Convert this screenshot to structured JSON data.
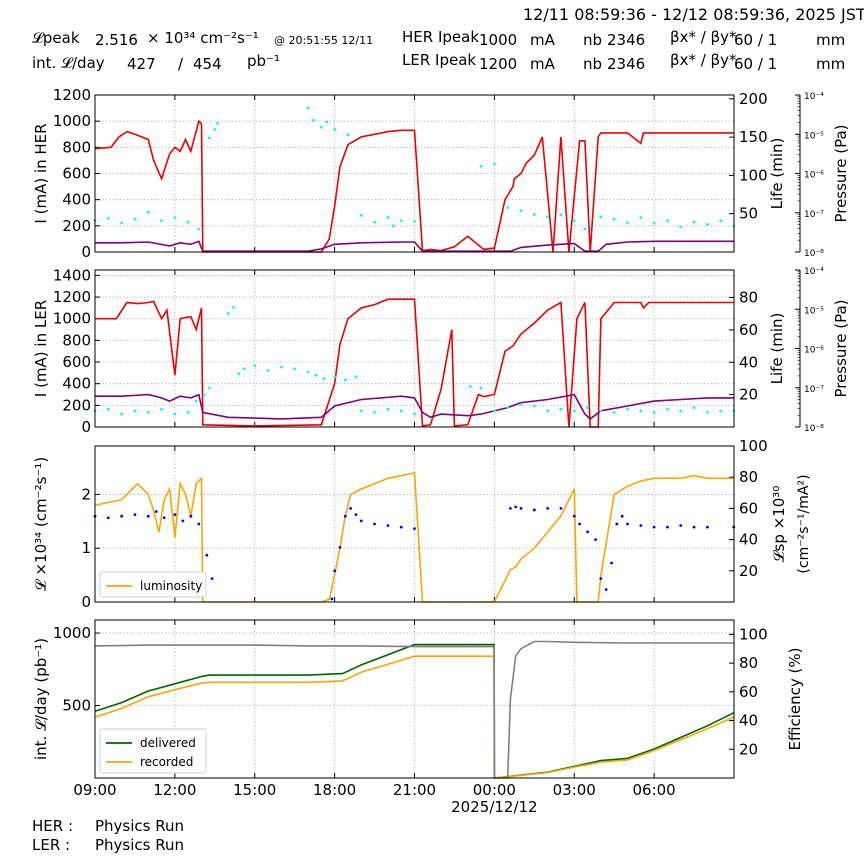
{
  "header": {
    "time_range": "12/11 08:59:36 - 12/12 08:59:36, 2025 JST",
    "lpeak_label": "𝓛peak",
    "lpeak_value": "2.516",
    "lpeak_unit": "× 10³⁴ cm⁻²s⁻¹",
    "lpeak_time": "@ 20:51:55 12/11",
    "intl_label": "int. 𝓛/day",
    "intl_delivered": "427",
    "intl_sep": "/",
    "intl_recorded": "454",
    "intl_unit": "pb⁻¹",
    "her_label": "HER Ipeak",
    "her_value": "1000",
    "her_unit": "mA",
    "ler_label": "LER Ipeak",
    "ler_value": "1200",
    "ler_unit": "mA",
    "nb_label": "nb",
    "her_nb": "2346",
    "ler_nb": "2346",
    "beta_label": "βx* / βy*",
    "her_beta": "60   / 1",
    "ler_beta": "60   / 1",
    "beta_unit": "mm"
  },
  "footer": {
    "her_label": "HER :",
    "her_status": "Physics Run",
    "ler_label": "LER :",
    "ler_status": "Physics Run"
  },
  "colors": {
    "current": "#ee0000",
    "life": "#800080",
    "pressure": "#00ffff",
    "luminosity": "#ffa500",
    "specific": "#0000ff",
    "delivered": "#006400",
    "recorded": "#ffa500",
    "efficiency": "#808080"
  },
  "chart_data": [
    {
      "type": "line",
      "ylabel": "I (mA) in HER",
      "y2label": "Life (min)",
      "y3label": "Pressure (Pa)",
      "ylim": [
        0,
        1200
      ],
      "yticks": [
        0,
        200,
        400,
        600,
        800,
        1000,
        1200
      ],
      "y2lim": [
        0,
        205
      ],
      "y2ticks": [
        50,
        100,
        150,
        200
      ],
      "y3ticks": [
        "10⁻⁸",
        "10⁻⁷",
        "10⁻⁶",
        "10⁻⁵",
        "10⁻⁴"
      ],
      "series": [
        {
          "role": "current",
          "x": [
            0,
            0.6,
            0.9,
            1.2,
            1.5,
            2.0,
            2.2,
            2.5,
            2.8,
            3.0,
            3.2,
            3.4,
            3.6,
            3.9,
            4.0,
            4.05,
            4.3,
            6.5,
            8.5,
            8.8,
            9.0,
            9.2,
            9.5,
            10.0,
            10.5,
            11.0,
            11.5,
            12.0,
            12.3,
            12.6,
            13.0,
            13.5,
            14.0,
            14.6,
            15.0,
            15.4,
            15.7,
            15.75,
            16.0,
            16.2,
            16.5,
            16.8,
            17.2,
            17.5,
            17.8,
            18.2,
            18.4,
            18.6,
            18.9,
            19.0,
            19.5,
            20.0,
            20.5,
            20.6,
            20.8,
            21.0,
            21.5,
            22.0,
            23.0,
            23.99
          ],
          "y": [
            790,
            800,
            880,
            920,
            900,
            860,
            700,
            560,
            750,
            800,
            770,
            860,
            770,
            1000,
            980,
            0,
            0,
            0,
            0,
            100,
            350,
            650,
            820,
            880,
            900,
            920,
            930,
            930,
            10,
            20,
            10,
            40,
            120,
            20,
            30,
            400,
            500,
            560,
            600,
            680,
            740,
            880,
            0,
            880,
            0,
            850,
            850,
            0,
            880,
            910,
            910,
            910,
            830,
            910,
            910,
            910,
            910,
            910,
            910,
            910
          ]
        },
        {
          "role": "life",
          "x": [
            0,
            1.0,
            2.0,
            2.8,
            3.2,
            3.6,
            3.9,
            4.05,
            4.5,
            6.0,
            8.0,
            8.5,
            9.0,
            10.0,
            11.5,
            12.0,
            12.3,
            14.0,
            15.6,
            16.0,
            17.0,
            18.0,
            18.4,
            18.9,
            19.2,
            20.0,
            21.0,
            22.0,
            23.0,
            23.99
          ],
          "y": [
            12,
            12,
            13,
            8,
            12,
            10,
            14,
            1,
            1,
            1,
            1,
            4,
            10,
            12,
            13,
            13,
            1,
            1,
            1,
            6,
            9,
            11,
            1,
            1,
            10,
            13,
            14,
            14,
            14,
            14
          ]
        },
        {
          "role": "pressure",
          "x": [
            0,
            0.5,
            1.0,
            1.5,
            2.0,
            2.5,
            3.0,
            3.5,
            3.9,
            4.3,
            4.5,
            4.6,
            8.0,
            8.2,
            8.5,
            8.7,
            9.0,
            9.5,
            10.0,
            10.5,
            11.0,
            11.2,
            11.5,
            12.0,
            14.5,
            15.0,
            15.5,
            16.0,
            16.5,
            17.0,
            17.5,
            18.0,
            18.4,
            18.6,
            19.0,
            19.5,
            20.0,
            20.5,
            21.0,
            21.5,
            22.0,
            22.5,
            23.0,
            23.5,
            23.99
          ],
          "y": [
            41,
            44,
            38,
            43,
            52,
            41,
            45,
            39,
            30,
            149,
            160,
            168,
            188,
            172,
            163,
            170,
            160,
            153,
            48,
            39,
            45,
            34,
            41,
            40,
            112,
            115,
            58,
            54,
            49,
            46,
            49,
            41,
            30,
            36,
            46,
            43,
            38,
            45,
            38,
            41,
            33,
            39,
            36,
            41,
            34
          ]
        }
      ]
    },
    {
      "type": "line",
      "ylabel": "I (mA) in LER",
      "y2label": "Life (min)",
      "y3label": "Pressure (Pa)",
      "ylim": [
        0,
        1450
      ],
      "yticks": [
        0,
        200,
        400,
        600,
        800,
        1000,
        1200,
        1400
      ],
      "y2lim": [
        0,
        97
      ],
      "y2ticks": [
        20,
        40,
        60,
        80
      ],
      "y3ticks": [
        "10⁻⁸",
        "10⁻⁷",
        "10⁻⁶",
        "10⁻⁵",
        "10⁻⁴"
      ],
      "series": [
        {
          "role": "current",
          "x": [
            0,
            0.8,
            1.2,
            1.6,
            2.0,
            2.2,
            2.5,
            2.7,
            3.0,
            3.2,
            3.6,
            3.8,
            4.0,
            4.05,
            6.0,
            8.5,
            9.0,
            9.2,
            9.5,
            10.0,
            10.5,
            11.0,
            11.5,
            12.0,
            12.3,
            12.6,
            13.0,
            13.4,
            13.5,
            14.0,
            14.4,
            14.6,
            15.0,
            15.4,
            15.7,
            16.0,
            16.5,
            17.0,
            17.5,
            17.8,
            18.1,
            18.4,
            18.6,
            18.9,
            19.0,
            19.5,
            20.0,
            20.5,
            20.6,
            20.8,
            21.0,
            22.0,
            23.0,
            23.99
          ],
          "y": [
            1000,
            1000,
            1150,
            1140,
            1150,
            1160,
            1000,
            1080,
            480,
            1000,
            1020,
            900,
            1100,
            20,
            10,
            20,
            400,
            760,
            1000,
            1100,
            1130,
            1180,
            1180,
            1180,
            10,
            20,
            350,
            900,
            10,
            20,
            300,
            280,
            300,
            700,
            750,
            860,
            960,
            1080,
            1150,
            0,
            1000,
            1150,
            0,
            0,
            1000,
            1150,
            1150,
            1150,
            1100,
            1150,
            1150,
            1150,
            1150,
            1150
          ]
        },
        {
          "role": "life",
          "x": [
            0,
            1.0,
            2.0,
            2.5,
            2.8,
            3.2,
            3.6,
            3.9,
            4.05,
            5.0,
            7.0,
            8.5,
            9.0,
            10.0,
            11.5,
            12.0,
            12.3,
            12.6,
            13.0,
            14.0,
            14.5,
            15.5,
            16.0,
            17.0,
            18.0,
            18.4,
            18.6,
            19.0,
            20.0,
            21.0,
            22.0,
            23.0,
            23.99
          ],
          "y": [
            19,
            19,
            20,
            18,
            16,
            19,
            18,
            20,
            9,
            6,
            5,
            6,
            13,
            17,
            19,
            18,
            9,
            6,
            8,
            7,
            8,
            12,
            15,
            17,
            20,
            8,
            5,
            10,
            13,
            16,
            17,
            18,
            18
          ]
        },
        {
          "role": "pressure",
          "x": [
            0,
            0.5,
            1.0,
            1.5,
            2.0,
            2.5,
            3.0,
            3.5,
            3.8,
            4.1,
            4.3,
            5.0,
            5.2,
            5.4,
            5.6,
            6.0,
            6.5,
            7.0,
            7.5,
            8.0,
            8.3,
            8.6,
            9.0,
            9.4,
            9.8,
            10.0,
            10.5,
            11.0,
            11.5,
            12.0,
            14.1,
            14.5,
            15.0,
            15.5,
            16.0,
            16.5,
            17.0,
            17.5,
            18.0,
            18.5,
            19.0,
            19.5,
            20.0,
            20.5,
            21.0,
            21.5,
            22.0,
            22.5,
            23.0,
            23.5,
            23.99
          ],
          "y": [
            10,
            11,
            8,
            10,
            9,
            11,
            8,
            9,
            16,
            20,
            24,
            70,
            74,
            33,
            36,
            38,
            35,
            37,
            36,
            34,
            32,
            30,
            31,
            29,
            31,
            10,
            9,
            11,
            10,
            8,
            25,
            24,
            10,
            12,
            14,
            13,
            10,
            11,
            10,
            12,
            10,
            9,
            11,
            10,
            9,
            11,
            10,
            12,
            9,
            10,
            10
          ]
        }
      ]
    },
    {
      "type": "line",
      "ylabel": "𝓛 ×10³⁴ (cm⁻²s⁻¹)",
      "y2label_line1": "𝓛sp ×10³⁰",
      "y2label_line2": "(cm⁻²s⁻¹/mA²)",
      "ylim": [
        0,
        2.9
      ],
      "yticks": [
        0,
        1,
        2
      ],
      "y2lim": [
        0,
        100
      ],
      "y2ticks": [
        20,
        40,
        60,
        80,
        100
      ],
      "legend": {
        "label": "luminosity",
        "placement": "bottom-left"
      },
      "series": [
        {
          "role": "luminosity",
          "x": [
            0,
            0.5,
            1.0,
            1.3,
            1.6,
            2.0,
            2.2,
            2.4,
            2.6,
            2.8,
            3.0,
            3.2,
            3.4,
            3.6,
            3.8,
            4.0,
            4.05,
            8.5,
            8.8,
            9.0,
            9.2,
            9.4,
            9.6,
            10.0,
            10.5,
            11.0,
            11.5,
            12.0,
            12.3,
            15.0,
            15.6,
            15.8,
            16.0,
            16.5,
            17.0,
            17.5,
            18.0,
            18.1,
            18.4,
            18.6,
            18.9,
            19.0,
            19.5,
            20.0,
            20.5,
            21.0,
            21.5,
            22.0,
            22.5,
            23.0,
            23.99
          ],
          "y": [
            1.8,
            1.85,
            1.9,
            2.05,
            2.2,
            2.0,
            1.7,
            1.3,
            1.9,
            2.1,
            1.2,
            2.2,
            2.0,
            1.6,
            2.2,
            2.3,
            0,
            0,
            0.05,
            0.5,
            1.0,
            1.6,
            2.0,
            2.1,
            2.2,
            2.3,
            2.35,
            2.4,
            0,
            0,
            0.6,
            0.65,
            0.8,
            1.0,
            1.3,
            1.6,
            2.1,
            0,
            0,
            0,
            0,
            0.5,
            2.0,
            2.15,
            2.25,
            2.3,
            2.3,
            2.3,
            2.35,
            2.3,
            2.3
          ]
        },
        {
          "role": "specific",
          "x": [
            0,
            0.5,
            1.0,
            1.5,
            2.0,
            2.3,
            2.6,
            3.0,
            3.3,
            3.6,
            3.9,
            4.2,
            4.4,
            8.9,
            9.0,
            9.2,
            9.4,
            9.6,
            9.8,
            10.0,
            10.5,
            11.0,
            11.5,
            12.0,
            15.6,
            15.8,
            16.0,
            16.5,
            17.0,
            17.5,
            18.0,
            18.2,
            18.5,
            18.8,
            19.0,
            19.2,
            19.4,
            19.6,
            19.8,
            20.0,
            20.5,
            21.0,
            21.5,
            22.0,
            22.5,
            23.0,
            23.99
          ],
          "y": [
            55,
            54,
            55,
            56,
            55,
            58,
            54,
            56,
            52,
            55,
            50,
            30,
            15,
            2,
            20,
            35,
            55,
            60,
            56,
            52,
            50,
            49,
            48,
            47,
            60,
            61,
            60,
            59,
            60,
            60,
            55,
            50,
            45,
            40,
            15,
            8,
            25,
            50,
            55,
            50,
            49,
            48,
            48,
            49,
            48,
            48,
            48
          ]
        }
      ]
    },
    {
      "type": "line",
      "ylabel": "int. 𝓛/day (pb⁻¹)",
      "y2label": "Efficiency (%)",
      "ylim": [
        0,
        1090
      ],
      "yticks": [
        500,
        1000
      ],
      "y2lim": [
        0,
        110
      ],
      "y2ticks": [
        20,
        40,
        60,
        80,
        100
      ],
      "legend": {
        "labels": [
          "delivered",
          "recorded"
        ],
        "placement": "bottom-left"
      },
      "series": [
        {
          "role": "delivered",
          "name": "delivered",
          "x": [
            0,
            1.0,
            2.0,
            3.0,
            4.0,
            4.3,
            6.0,
            8.0,
            9.3,
            10.0,
            12.0,
            14.99,
            15.0,
            16.0,
            17.0,
            18.0,
            19.0,
            20.0,
            21.0,
            22.0,
            23.0,
            23.99
          ],
          "y": [
            460,
            520,
            600,
            650,
            700,
            710,
            710,
            710,
            720,
            780,
            920,
            920,
            0,
            20,
            40,
            80,
            120,
            135,
            200,
            280,
            360,
            450
          ]
        },
        {
          "role": "recorded",
          "name": "recorded",
          "x": [
            0,
            1.0,
            2.0,
            3.0,
            4.0,
            4.3,
            6.0,
            8.0,
            9.3,
            10.0,
            12.0,
            14.99,
            15.0,
            16.0,
            17.0,
            18.0,
            19.0,
            20.0,
            21.0,
            22.0,
            23.0,
            23.99
          ],
          "y": [
            420,
            480,
            560,
            610,
            655,
            660,
            660,
            660,
            670,
            730,
            840,
            840,
            0,
            18,
            38,
            75,
            110,
            125,
            190,
            265,
            340,
            420
          ]
        },
        {
          "role": "efficiency",
          "x": [
            0,
            2.0,
            4.0,
            6.0,
            8.0,
            10.0,
            12.0,
            14.99,
            15.0,
            15.5,
            15.6,
            15.8,
            16.0,
            16.5,
            17.0,
            18.0,
            20.0,
            22.0,
            23.99
          ],
          "y": [
            92,
            92.5,
            92.5,
            92.5,
            92,
            92,
            91.5,
            91.5,
            0,
            0,
            55,
            85,
            90,
            95,
            95,
            94.5,
            94,
            94,
            94
          ]
        }
      ]
    }
  ],
  "xaxis": {
    "range_hours": [
      0,
      24
    ],
    "tick_labels": [
      "09:00",
      "12:00",
      "15:00",
      "18:00",
      "21:00",
      "00:00",
      "03:00",
      "06:00"
    ],
    "date_label": "2025/12/12"
  }
}
